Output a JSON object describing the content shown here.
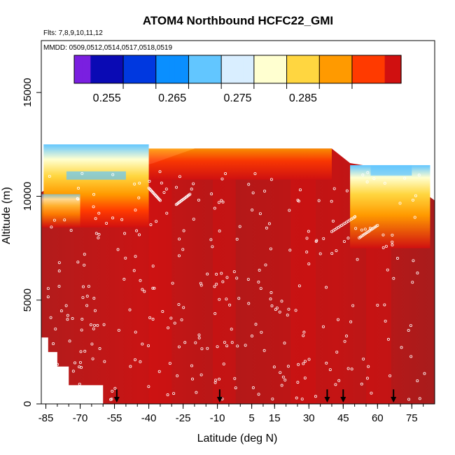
{
  "chart_data": {
    "type": "heatmap",
    "title": "ATOM4 Northbound HCFC22_GMI",
    "subtitle_flights": "Flts: 7,8,9,10,11,12",
    "subtitle_dates": "MMDD: 0509,0512,0514,0517,0518,0519",
    "xlabel": "Latitude (deg N)",
    "ylabel": "Altitude (m)",
    "xlim": [
      -87,
      85
    ],
    "ylim": [
      0,
      17500
    ],
    "x_ticks": [
      -85,
      -70,
      -55,
      -40,
      -25,
      -10,
      5,
      15,
      30,
      45,
      60,
      75
    ],
    "y_ticks": [
      0,
      5000,
      10000,
      15000
    ],
    "colorbar": {
      "colors": [
        "#7a1fe0",
        "#0a0ab4",
        "#0038e0",
        "#0a8fff",
        "#62c6ff",
        "#d9eeff",
        "#ffffd0",
        "#ffd640",
        "#ff9a00",
        "#ff3a00",
        "#d01010",
        "#a81c1c"
      ],
      "boundaries": [
        0.25,
        0.2525,
        0.2575,
        0.2625,
        0.2675,
        0.2725,
        0.2775,
        0.2825,
        0.2875,
        0.2925,
        0.2975,
        0.3
      ],
      "tick_values": [
        0.255,
        0.265,
        0.275,
        0.285
      ],
      "tick_labels": [
        "0.255",
        "0.265",
        "0.275",
        "0.285"
      ]
    },
    "flight_profile_markers_lat": [
      -54,
      -9,
      38,
      45,
      67
    ],
    "upper_gradient_regions": [
      {
        "lat_range": [
          -86,
          -40
        ],
        "alt_range": [
          8500,
          12500
        ]
      },
      {
        "lat_range": [
          48,
          83
        ],
        "alt_range": [
          7500,
          11500
        ]
      }
    ]
  }
}
